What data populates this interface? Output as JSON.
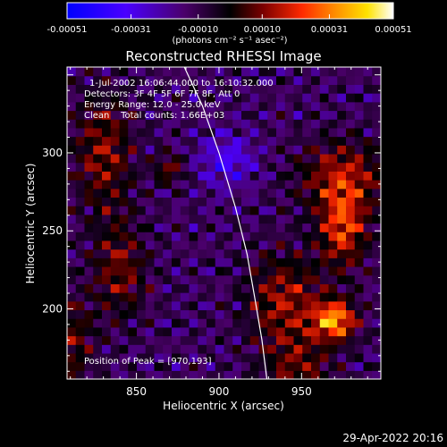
{
  "chart_data": {
    "type": "heatmap",
    "title": "Reconstructed RHESSI Image",
    "xlabel": "Heliocentric X (arcsec)",
    "ylabel": "Heliocentric Y (arcsec)",
    "xlim": [
      808,
      998
    ],
    "ylim": [
      155,
      355
    ],
    "x_ticks": [
      850,
      900,
      950
    ],
    "y_ticks": [
      200,
      250,
      300
    ],
    "colorbar": {
      "label": "(photons cm⁻² s⁻¹ asec⁻²)",
      "ticks": [
        "-0.00051",
        "-0.00031",
        "-0.00010",
        "0.00010",
        "0.00031",
        "0.00051"
      ],
      "min": -0.00051,
      "max": 0.00051,
      "colors": [
        "#0000ff",
        "#7a00ff",
        "#000000",
        "#7a0000",
        "#ff2a00",
        "#ff8c00",
        "#ffe200",
        "#ffffff"
      ]
    },
    "annotations": [
      "1-Jul-2002 16:06:44.000 to 16:10:32.000",
      "Detectors: 3F 4F 5F 6F 7F 8F, Att 0",
      "Energy Range: 12.0 - 25.0 keV",
      "Clean    Total counts: 1.66E+03",
      "Position of Peak = [970,193]"
    ],
    "peak": {
      "x": 970,
      "y": 193
    },
    "footer": "29-Apr-2022 20:16",
    "limb": [
      [
        879,
        355
      ],
      [
        890,
        330
      ],
      [
        900,
        300
      ],
      [
        910,
        265
      ],
      [
        917,
        235
      ],
      [
        922,
        205
      ],
      [
        926,
        180
      ],
      [
        929,
        155
      ]
    ]
  }
}
